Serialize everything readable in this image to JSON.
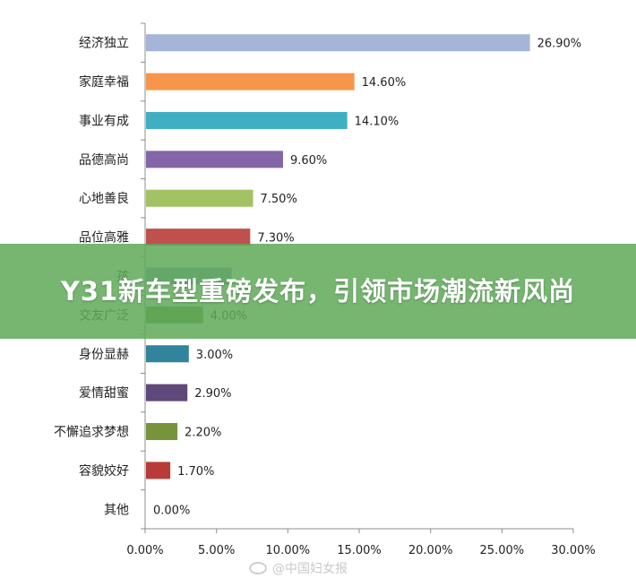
{
  "banner": {
    "title": "Y31新车型重磅发布，引领市场潮流新风尚"
  },
  "watermark": {
    "text": "@中国妇女报",
    "icon": "weibo-icon"
  },
  "chart_data": {
    "type": "bar",
    "orientation": "horizontal",
    "title": "",
    "xlabel": "",
    "ylabel": "",
    "xlim": [
      0,
      30
    ],
    "x_ticks": [
      0,
      5,
      10,
      15,
      20,
      25,
      30
    ],
    "x_tick_labels": [
      "0.00%",
      "5.00%",
      "10.00%",
      "15.00%",
      "20.00%",
      "25.00%",
      "30.00%"
    ],
    "grid": false,
    "categories": [
      "经济独立",
      "家庭幸福",
      "事业有成",
      "品德高尚",
      "心地善良",
      "品位高雅",
      "孩",
      "交友广泛",
      "身份显赫",
      "爱情甜蜜",
      "不懈追求梦想",
      "容貌姣好",
      "其他"
    ],
    "values": [
      26.9,
      14.6,
      14.1,
      9.6,
      7.5,
      7.3,
      6.0,
      4.0,
      3.0,
      2.9,
      2.2,
      1.7,
      0.0
    ],
    "value_labels": [
      "26.90%",
      "14.60%",
      "14.10%",
      "9.60%",
      "7.50%",
      "7.30%",
      "",
      "4.00%",
      "3.00%",
      "2.90%",
      "2.20%",
      "1.70%",
      "0.00%"
    ],
    "colors": [
      "#A5B5D8",
      "#F7964A",
      "#3FAFC4",
      "#8266A8",
      "#A2C263",
      "#C0504D",
      "#7F9BC7",
      "#6C8E3D",
      "#31849B",
      "#5F497A",
      "#77933C",
      "#B83B38",
      "#9BBB59"
    ]
  }
}
